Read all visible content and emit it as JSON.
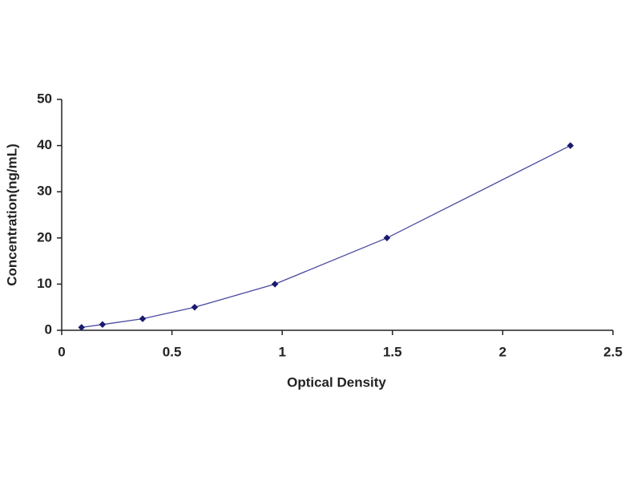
{
  "chart_data": {
    "type": "scatter",
    "x_label": "Optical Density",
    "y_label": "Concentration(ng/mL)",
    "series": [
      {
        "color": "#1a1a6e",
        "line_color": "#4a4aa0",
        "x": [
          0.09,
          0.185,
          0.367,
          0.603,
          0.967,
          1.475,
          2.307
        ],
        "values": [
          0.625,
          1.25,
          2.5,
          5,
          10,
          20,
          40
        ]
      }
    ],
    "xlim": [
      0,
      2.5
    ],
    "xticks": [
      0,
      0.5,
      1,
      1.5,
      2,
      2.5
    ],
    "ylim": [
      0,
      50
    ],
    "yticks": [
      0,
      10,
      20,
      30,
      40,
      50
    ],
    "grid": false,
    "connect": true
  }
}
